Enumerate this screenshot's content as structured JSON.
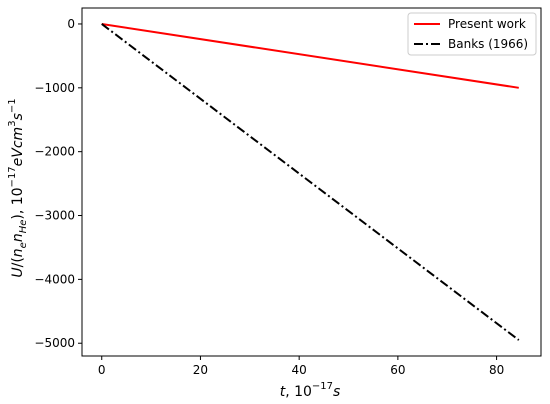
{
  "chart_data": {
    "type": "line",
    "title": "",
    "xlabel": "t, 10^{-17}s",
    "ylabel": "U/(n_e n_He), 10^{-17} eV cm^3 s^{-1}",
    "xlim": [
      -4,
      89
    ],
    "ylim": [
      -5200,
      250
    ],
    "xticks": [
      0,
      20,
      40,
      60,
      80
    ],
    "yticks": [
      0,
      -1000,
      -2000,
      -3000,
      -4000,
      -5000
    ],
    "xtick_labels": [
      "0",
      "20",
      "40",
      "60",
      "80"
    ],
    "ytick_labels": [
      "0",
      "−1000",
      "−2000",
      "−3000",
      "−4000",
      "−5000"
    ],
    "grid": false,
    "legend_position": "top-right",
    "series": [
      {
        "name": "Present work",
        "color": "#ff0000",
        "style": "solid",
        "x": [
          0,
          84.5
        ],
        "y": [
          0,
          -1000
        ]
      },
      {
        "name": "Banks (1966)",
        "color": "#000000",
        "style": "dash-dot",
        "x": [
          0,
          84.5
        ],
        "y": [
          0,
          -4950
        ]
      }
    ]
  }
}
